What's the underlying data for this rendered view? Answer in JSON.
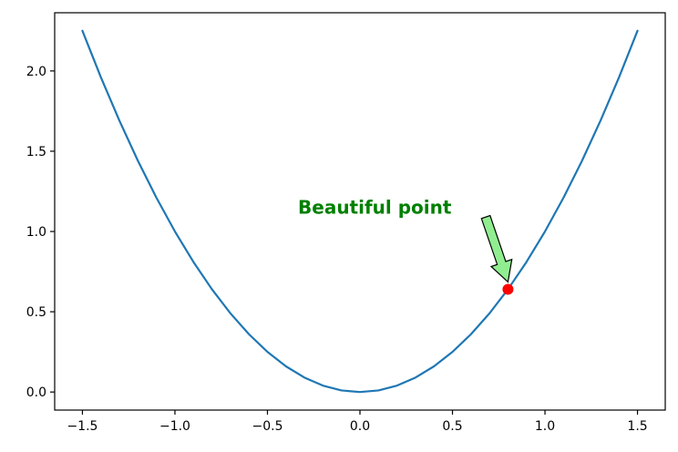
{
  "chart_data": {
    "type": "line",
    "title": "",
    "xlabel": "",
    "ylabel": "",
    "xlim": [
      -1.65,
      1.65
    ],
    "ylim": [
      -0.1125,
      2.3625
    ],
    "grid": false,
    "x_ticks": [
      -1.5,
      -1.0,
      -0.5,
      0.0,
      0.5,
      1.0,
      1.5
    ],
    "x_tick_labels": [
      "−1.5",
      "−1.0",
      "−0.5",
      "0.0",
      "0.5",
      "1.0",
      "1.5"
    ],
    "y_ticks": [
      0.0,
      0.5,
      1.0,
      1.5,
      2.0
    ],
    "y_tick_labels": [
      "0.0",
      "0.5",
      "1.0",
      "1.5",
      "2.0"
    ],
    "series": [
      {
        "color": "#1f77b4",
        "x": [
          -1.5,
          -1.4,
          -1.3,
          -1.2,
          -1.1,
          -1.0,
          -0.9,
          -0.8,
          -0.7,
          -0.6,
          -0.5,
          -0.4,
          -0.3,
          -0.2,
          -0.1,
          0.0,
          0.1,
          0.2,
          0.3,
          0.4,
          0.5,
          0.6,
          0.7,
          0.8,
          0.9,
          1.0,
          1.1,
          1.2,
          1.3,
          1.4,
          1.5
        ],
        "y": [
          2.25,
          1.96,
          1.69,
          1.44,
          1.21,
          1.0,
          0.81,
          0.64,
          0.49,
          0.36,
          0.25,
          0.16,
          0.09,
          0.04,
          0.01,
          0.0,
          0.01,
          0.04,
          0.09,
          0.16,
          0.25,
          0.36,
          0.49,
          0.64,
          0.81,
          1.0,
          1.21,
          1.44,
          1.69,
          1.96,
          2.25
        ]
      }
    ],
    "highlight_point": {
      "x": 0.8,
      "y": 0.64,
      "color": "#ff0000"
    },
    "annotation": {
      "text": "Beautiful point",
      "text_color": "#008000",
      "text_x": 0.08,
      "text_y": 1.15,
      "arrow_tail_x": 0.68,
      "arrow_tail_y": 1.09,
      "arrow_color": "#90ee90"
    }
  }
}
